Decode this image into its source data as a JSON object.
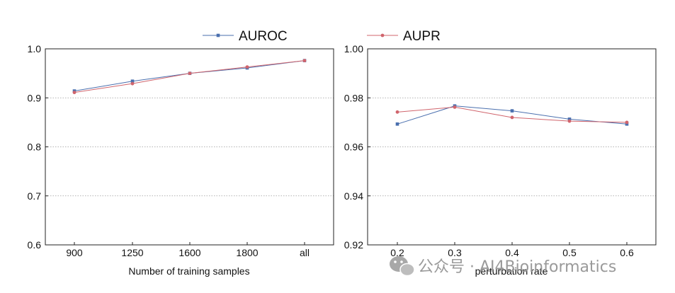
{
  "chart_data": [
    {
      "type": "line",
      "title": "",
      "xlabel": "Number of training samples",
      "ylabel": "",
      "categories": [
        "900",
        "1250",
        "1600",
        "1800",
        "all"
      ],
      "ylim": [
        0.6,
        1.0
      ],
      "yticks": [
        "0.6",
        "0.7",
        "0.8",
        "0.9",
        "1.0"
      ],
      "grid": "horizontal dotted",
      "legend": "top-center",
      "series": [
        {
          "name": "AUROC",
          "values": [
            0.914,
            0.934,
            0.95,
            0.961,
            0.976
          ],
          "color": "#4a6fae",
          "marker": "square"
        },
        {
          "name": "",
          "values": [
            0.911,
            0.929,
            0.95,
            0.963,
            0.976
          ],
          "color": "#d0646c",
          "marker": "circle"
        }
      ]
    },
    {
      "type": "line",
      "title": "",
      "xlabel": "perturbation rate",
      "ylabel": "",
      "categories": [
        "0.2",
        "0.3",
        "0.4",
        "0.5",
        "0.6"
      ],
      "ylim": [
        0.92,
        1.0
      ],
      "yticks": [
        "0.92",
        "0.94",
        "0.96",
        "0.98",
        "1.00"
      ],
      "grid": "horizontal dotted",
      "legend": "top-center",
      "series": [
        {
          "name": "",
          "values": [
            0.9693,
            0.9767,
            0.9747,
            0.9713,
            0.9693
          ],
          "color": "#4a6fae",
          "marker": "square"
        },
        {
          "name": "AUPR",
          "values": [
            0.9742,
            0.9762,
            0.972,
            0.9705,
            0.97
          ],
          "color": "#d0646c",
          "marker": "circle"
        }
      ]
    }
  ],
  "watermark": {
    "text": "公众号 · AI4Bioinformatics",
    "icon": "wechat-icon",
    "color": "#9a9a9a"
  }
}
